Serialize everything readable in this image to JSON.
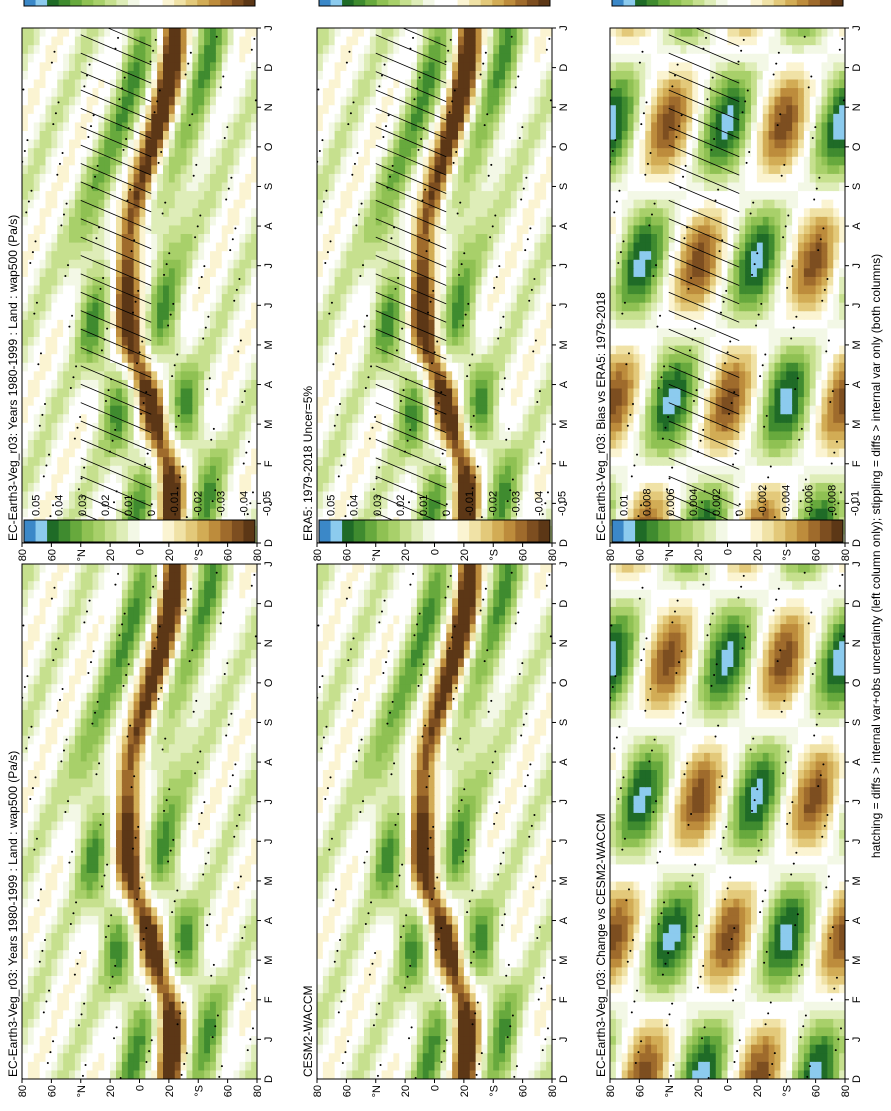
{
  "orientation": "rotated-90-ccw",
  "footnote": "hatching = diffs > internal var+obs uncertainty (left column only); stippling = diffs > internal var only (both columns)",
  "month_labels": [
    "D",
    "J",
    "F",
    "M",
    "A",
    "M",
    "J",
    "J",
    "A",
    "S",
    "O",
    "N",
    "D",
    "J"
  ],
  "lat_labels": [
    "80",
    "60",
    "°N",
    "20",
    "0",
    "20",
    "°S",
    "60",
    "80"
  ],
  "palettes": {
    "fields": [
      "#3b88c8",
      "#8ccbee",
      "#1f6b27",
      "#3f8b2f",
      "#67a93d",
      "#8fc153",
      "#a8d06a",
      "#c6e08e",
      "#deedb8",
      "#f3f8e6",
      "#ffffff",
      "#ffffff",
      "#fbf4d2",
      "#f0e2a6",
      "#e3c97a",
      "#d2ac55",
      "#bd8c3c",
      "#9f6b2c",
      "#7d4e20",
      "#5c3716"
    ],
    "diffs": [
      "#3b88c8",
      "#8ccbee",
      "#1f6b27",
      "#3f8b2f",
      "#67a93d",
      "#8fc153",
      "#a8d06a",
      "#c6e08e",
      "#deedb8",
      "#f3f8e6",
      "#ffffff",
      "#ffffff",
      "#fbf4d2",
      "#f0e2a6",
      "#e3c97a",
      "#d2ac55",
      "#bd8c3c",
      "#9f6b2c",
      "#7d4e20",
      "#5c3716"
    ]
  },
  "colorbar_fields_labels": [
    "0.05",
    "0.04",
    "0.03",
    "0.02",
    "0.01",
    "0",
    "-0.01",
    "-0.02",
    "-0.03",
    "-0.04",
    "-0.05"
  ],
  "colorbar_diffs_labels": [
    "0.01",
    "0.008",
    "0.006",
    "0.004",
    "0.002",
    "0",
    "-0.002",
    "-0.004",
    "-0.006",
    "-0.008",
    "-0.01"
  ],
  "chart_data": [
    {
      "type": "heatmap",
      "id": "model-left",
      "title": "EC-Earth3-Veg_r03: Years 1980-1999 : Land : wap500 (Pa/s)",
      "xlabel": "",
      "ylabel": "",
      "hatching": true,
      "stippling": true,
      "field": "fields",
      "amp": 0.04
    },
    {
      "type": "heatmap",
      "id": "model-right",
      "title": "EC-Earth3-Veg_r03: Years 1980-1999 : Land : wap500 (Pa/s)",
      "xlabel": "",
      "ylabel": "",
      "hatching": false,
      "stippling": true,
      "field": "fields",
      "amp": 0.04
    },
    {
      "type": "heatmap",
      "id": "obs-left",
      "title": "ERA5: 1979-2018 Uncer=5%",
      "xlabel": "",
      "ylabel": "",
      "hatching": true,
      "stippling": true,
      "field": "fields",
      "amp": 0.04
    },
    {
      "type": "heatmap",
      "id": "obs-right",
      "title": "CESM2-WACCM",
      "xlabel": "",
      "ylabel": "",
      "hatching": false,
      "stippling": true,
      "field": "fields",
      "amp": 0.04
    },
    {
      "type": "heatmap",
      "id": "diff-left",
      "title": "EC-Earth3-Veg_r03: Bias vs ERA5: 1979-2018",
      "xlabel": "",
      "ylabel": "",
      "hatching": true,
      "stippling": true,
      "field": "diffs",
      "amp": 0.012
    },
    {
      "type": "heatmap",
      "id": "diff-right",
      "title": "EC-Earth3-Veg_r03: Change vs CESM2-WACCM",
      "xlabel": "",
      "ylabel": "",
      "hatching": false,
      "stippling": true,
      "field": "diffs",
      "amp": 0.012
    }
  ]
}
